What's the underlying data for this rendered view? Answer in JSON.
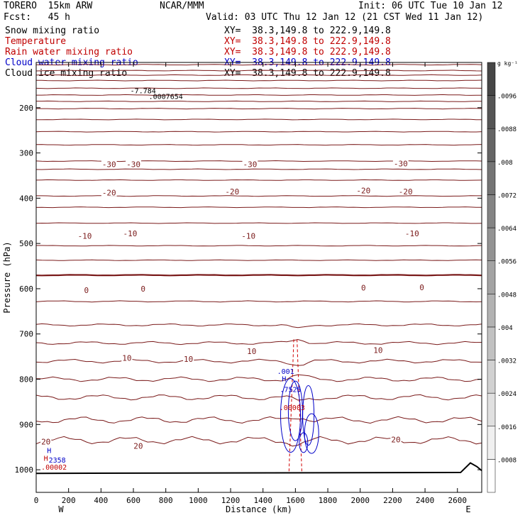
{
  "header": {
    "model": "TORERO  15km ARW",
    "org": "NCAR/MMM",
    "init": "Init: 06 UTC Tue 10 Jan 12",
    "fcst": "Fcst:   45 h",
    "valid": "Valid: 03 UTC Thu 12 Jan 12 (21 CST Wed 11 Jan 12)"
  },
  "fields": [
    {
      "name": "Snow mixing ratio",
      "xy": "XY=  38.3,149.8 to 222.9,149.8",
      "color": "#000000"
    },
    {
      "name": "Temperature",
      "xy": "XY=  38.3,149.8 to 222.9,149.8",
      "color": "#c00000"
    },
    {
      "name": "Rain water mixing ratio",
      "xy": "XY=  38.3,149.8 to 222.9,149.8",
      "color": "#c00000"
    },
    {
      "name": "Cloud water mixing ratio",
      "xy": "XY=  38.3,149.8 to 222.9,149.8",
      "color": "#0000c8"
    },
    {
      "name": "Cloud ice mixing ratio",
      "xy": "XY=  38.3,149.8 to 222.9,149.8",
      "color": "#000000"
    }
  ],
  "chart_data": {
    "type": "contour",
    "xlabel": "Distance (km)",
    "ylabel": "Pressure (hPa)",
    "xlim": [
      0,
      2750
    ],
    "ylim": [
      1050,
      100
    ],
    "x_ticks": [
      0,
      200,
      400,
      600,
      800,
      1000,
      1200,
      1400,
      1600,
      1800,
      2000,
      2200,
      2400,
      2600
    ],
    "y_ticks": [
      200,
      300,
      400,
      500,
      600,
      700,
      800,
      900,
      1000
    ],
    "end_labels": {
      "left": "W",
      "right": "E"
    },
    "colorbar": {
      "unit": "g kg⁻¹",
      "ticks": [
        ".0008",
        ".0016",
        ".0024",
        ".0032",
        ".004",
        ".0048",
        ".0056",
        ".0064",
        ".0072",
        ".008",
        ".0088",
        ".0096"
      ]
    },
    "isotherm_labels": [
      {
        "text": "-30",
        "x": 450,
        "p": 325
      },
      {
        "text": "-30",
        "x": 600,
        "p": 325
      },
      {
        "text": "-30",
        "x": 1320,
        "p": 325
      },
      {
        "text": "-30",
        "x": 2250,
        "p": 323
      },
      {
        "text": "-20",
        "x": 450,
        "p": 388
      },
      {
        "text": "-20",
        "x": 1210,
        "p": 385
      },
      {
        "text": "-20",
        "x": 2020,
        "p": 383
      },
      {
        "text": "-20",
        "x": 2280,
        "p": 385
      },
      {
        "text": "-10",
        "x": 300,
        "p": 483
      },
      {
        "text": "-10",
        "x": 580,
        "p": 478
      },
      {
        "text": "-10",
        "x": 1310,
        "p": 483
      },
      {
        "text": "-10",
        "x": 2320,
        "p": 478
      },
      {
        "text": "0",
        "x": 310,
        "p": 603
      },
      {
        "text": "0",
        "x": 660,
        "p": 600
      },
      {
        "text": "0",
        "x": 2020,
        "p": 598
      },
      {
        "text": "0",
        "x": 2380,
        "p": 597
      },
      {
        "text": "10",
        "x": 560,
        "p": 753
      },
      {
        "text": "10",
        "x": 940,
        "p": 755
      },
      {
        "text": "10",
        "x": 1330,
        "p": 738
      },
      {
        "text": "10",
        "x": 2110,
        "p": 736
      },
      {
        "text": "20",
        "x": 60,
        "p": 938
      },
      {
        "text": "20",
        "x": 630,
        "p": 947
      },
      {
        "text": "20",
        "x": 2220,
        "p": 933
      }
    ],
    "extrema": [
      {
        "text": "-7.784",
        "x": 660,
        "p": 168,
        "color": "#000000"
      },
      {
        "text": ".0007654",
        "x": 800,
        "p": 181,
        "color": "#000000"
      },
      {
        "text": ".001",
        "x": 1540,
        "p": 788,
        "color": "#0000c8"
      },
      {
        "text": "H",
        "x": 1530,
        "p": 805,
        "color": "#0000c8"
      },
      {
        "text": ".7525",
        "x": 1570,
        "p": 828,
        "color": "#0000c8"
      },
      {
        "text": ".00003",
        "x": 1580,
        "p": 868,
        "color": "#c00000"
      },
      {
        "text": "H",
        "x": 80,
        "p": 963,
        "color": "#0000c8"
      },
      {
        "text": "H",
        "x": 60,
        "p": 980,
        "color": "#c00000"
      },
      {
        "text": "2358",
        "x": 130,
        "p": 984,
        "color": "#0000c8"
      },
      {
        "text": ".00002",
        "x": 110,
        "p": 1000,
        "color": "#c00000"
      }
    ]
  }
}
